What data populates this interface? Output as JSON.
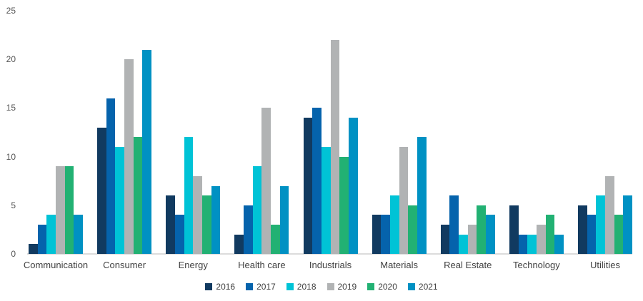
{
  "chart_data": {
    "type": "bar",
    "title": "",
    "xlabel": "",
    "ylabel": "",
    "ylim": [
      0,
      25
    ],
    "yticks": [
      0,
      5,
      10,
      15,
      20,
      25
    ],
    "grid": false,
    "legend_position": "bottom",
    "categories": [
      "Communication",
      "Consumer",
      "Energy",
      "Health care",
      "Industrials",
      "Materials",
      "Real Estate",
      "Technology",
      "Utilities"
    ],
    "series": [
      {
        "name": "2016",
        "color": "#113a60",
        "values": [
          1,
          13,
          6,
          2,
          14,
          4,
          3,
          5,
          5
        ]
      },
      {
        "name": "2017",
        "color": "#0563ac",
        "values": [
          3,
          16,
          4,
          5,
          15,
          4,
          6,
          2,
          4
        ]
      },
      {
        "name": "2018",
        "color": "#00c3d6",
        "values": [
          4,
          11,
          12,
          9,
          11,
          6,
          2,
          2,
          6
        ]
      },
      {
        "name": "2019",
        "color": "#b1b3b4",
        "values": [
          9,
          20,
          8,
          15,
          22,
          11,
          3,
          3,
          8
        ]
      },
      {
        "name": "2020",
        "color": "#22b173",
        "values": [
          9,
          12,
          6,
          3,
          10,
          5,
          5,
          4,
          4
        ]
      },
      {
        "name": "2021",
        "color": "#0091c3",
        "values": [
          4,
          21,
          7,
          7,
          14,
          12,
          4,
          2,
          6
        ]
      }
    ],
    "axis_colors": {
      "tick_label": "#555555",
      "category_label": "#404040",
      "baseline": "#dcdcdc"
    }
  }
}
